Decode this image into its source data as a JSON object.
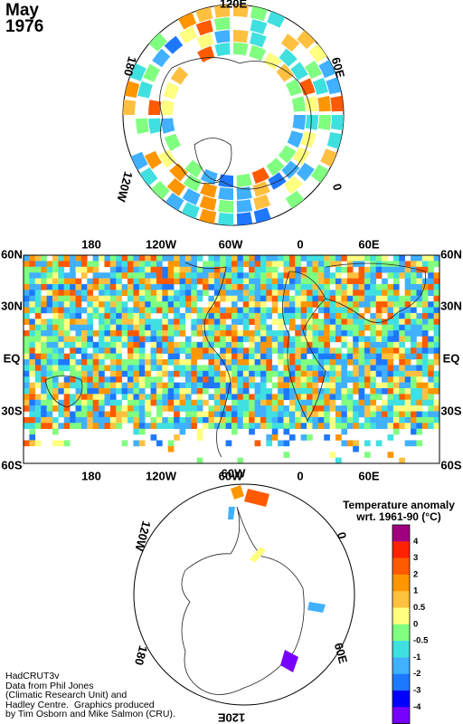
{
  "title": {
    "month": "May",
    "year": "1976"
  },
  "north_polar_labels": {
    "top": "120E",
    "right": "60E",
    "bottom_right": "0",
    "left": "180",
    "bottom_left": "120W"
  },
  "main_map": {
    "top_labels": [
      "180",
      "120W",
      "60W",
      "0",
      "60E"
    ],
    "bottom_labels": [
      "180",
      "120W",
      "60W",
      "0",
      "60E"
    ],
    "left_labels": [
      "60N",
      "30N",
      "EQ",
      "30S",
      "60S"
    ],
    "right_labels": [
      "60N",
      "30N",
      "EQ",
      "30S",
      "60S"
    ]
  },
  "south_polar_labels": {
    "top": "60W",
    "right": "0",
    "bottom_right": "60E",
    "bottom": "120E",
    "bottom_left": "180",
    "left": "120W"
  },
  "legend": {
    "title_line1": "Temperature anomaly",
    "title_line2": "wrt. 1961-90 (°C)",
    "colors": [
      "#a0007f",
      "#ff2200",
      "#ff5a00",
      "#ff9600",
      "#ffc040",
      "#ffff80",
      "#80ff80",
      "#40e0e0",
      "#40b0ff",
      "#1e78ff",
      "#0000ff",
      "#7800ff"
    ],
    "labels": [
      "4",
      "3",
      "2",
      "1",
      "0.5",
      "0",
      "-0.5",
      "-1",
      "-2",
      "-3",
      "-4"
    ]
  },
  "credit": {
    "line1": "HadCRUT3v",
    "line2": "Data from Phil Jones",
    "line3": "(Climatic Research Unit) and",
    "line4": "Hadley Centre.  Graphics produced",
    "line5": "by Tim Osborn and Mike Salmon (CRU)."
  }
}
